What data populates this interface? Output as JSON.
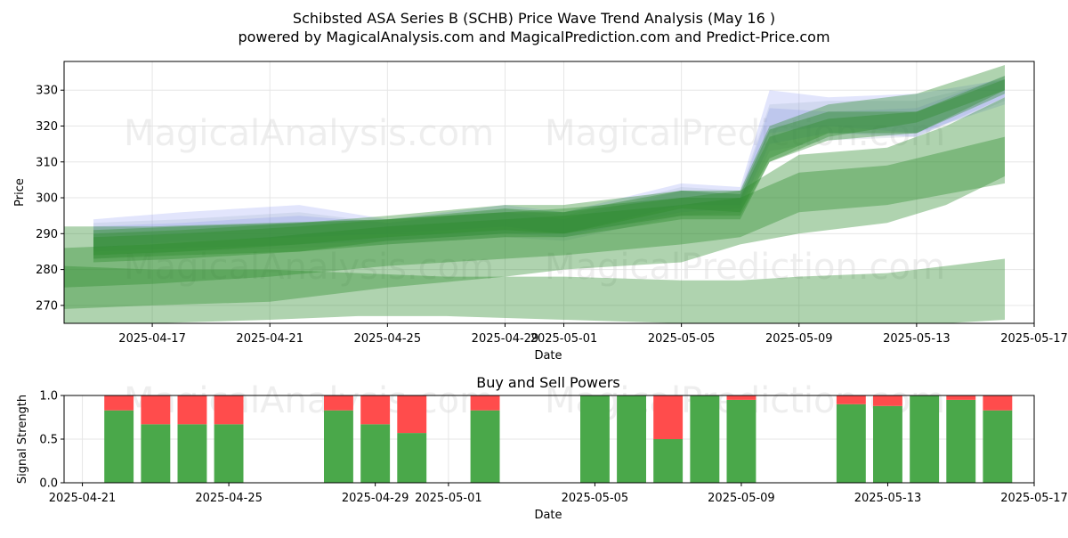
{
  "title": "Schibsted ASA Series B (SCHB) Price Wave Trend Analysis (May 16 )",
  "subtitle": "powered by MagicalAnalysis.com and MagicalPrediction.com and Predict-Price.com",
  "watermarks": [
    "MagicalAnalysis.com",
    "MagicalPrediction.com"
  ],
  "colors": {
    "green_band": "#2e8b2e",
    "blue_band": "#6f7ff0",
    "gray_band": "#8fa5bf",
    "buy": "#4aa84a",
    "sell": "#ff4c4c",
    "grid": "#e6e6e6"
  },
  "chart_data": [
    {
      "type": "area",
      "title": "",
      "xlabel": "Date",
      "ylabel": "Price",
      "x_range": [
        "2025-04-14",
        "2025-05-17"
      ],
      "ylim": [
        265,
        338
      ],
      "yticks": [
        270,
        280,
        290,
        300,
        310,
        320,
        330
      ],
      "xticks": [
        "2025-04-17",
        "2025-04-21",
        "2025-04-25",
        "2025-04-29",
        "2025-05-01",
        "2025-05-05",
        "2025-05-09",
        "2025-05-13",
        "2025-05-17"
      ],
      "grid": true,
      "series": [
        {
          "color": "blue",
          "x": [
            "2025-04-15",
            "2025-04-18",
            "2025-04-22",
            "2025-04-25",
            "2025-04-29",
            "2025-05-01",
            "2025-05-05",
            "2025-05-07",
            "2025-05-08",
            "2025-05-10",
            "2025-05-13",
            "2025-05-16"
          ],
          "upper": [
            294,
            296,
            298,
            294,
            298,
            296,
            304,
            303,
            330,
            328,
            329,
            333
          ],
          "lower": [
            286,
            288,
            289,
            290,
            292,
            290,
            298,
            298,
            318,
            320,
            318,
            326
          ]
        },
        {
          "color": "blue",
          "x": [
            "2025-04-15",
            "2025-04-18",
            "2025-04-22",
            "2025-04-25",
            "2025-04-29",
            "2025-05-01",
            "2025-05-05",
            "2025-05-07",
            "2025-05-08",
            "2025-05-10",
            "2025-05-13",
            "2025-05-16"
          ],
          "upper": [
            292,
            293,
            295,
            293,
            296,
            294,
            302,
            301,
            325,
            324,
            325,
            334
          ],
          "lower": [
            285,
            286,
            287,
            288,
            290,
            289,
            296,
            297,
            315,
            318,
            317,
            328
          ]
        },
        {
          "color": "gray",
          "x": [
            "2025-04-15",
            "2025-04-18",
            "2025-04-22",
            "2025-04-25",
            "2025-04-29",
            "2025-05-01",
            "2025-05-05",
            "2025-05-07",
            "2025-05-08",
            "2025-05-10",
            "2025-05-13",
            "2025-05-16"
          ],
          "upper": [
            293,
            294,
            296,
            293,
            297,
            295,
            303,
            302,
            326,
            327,
            327,
            333
          ],
          "lower": [
            283,
            285,
            286,
            287,
            289,
            288,
            295,
            296,
            313,
            316,
            317,
            327
          ]
        },
        {
          "color": "green",
          "x": [
            "2025-04-15",
            "2025-04-18",
            "2025-04-22",
            "2025-04-25",
            "2025-04-29",
            "2025-05-01",
            "2025-05-05",
            "2025-05-07",
            "2025-05-08",
            "2025-05-10",
            "2025-05-13",
            "2025-05-16"
          ],
          "upper": [
            291,
            292,
            293,
            294,
            297,
            296,
            302,
            301,
            319,
            324,
            324,
            334
          ],
          "lower": [
            284,
            285,
            287,
            289,
            291,
            290,
            297,
            296,
            311,
            318,
            318,
            329
          ]
        },
        {
          "color": "green",
          "x": [
            "2025-04-15",
            "2025-04-18",
            "2025-04-22",
            "2025-04-25",
            "2025-04-29",
            "2025-05-01",
            "2025-05-05",
            "2025-05-07",
            "2025-05-08",
            "2025-05-10",
            "2025-05-13",
            "2025-05-16"
          ],
          "upper": [
            289,
            290,
            292,
            294,
            296,
            296,
            300,
            300,
            317,
            322,
            324,
            333
          ],
          "lower": [
            283,
            284,
            285,
            288,
            290,
            290,
            295,
            295,
            310,
            316,
            318,
            330
          ]
        },
        {
          "color": "green",
          "x": [
            "2025-04-15",
            "2025-04-18",
            "2025-04-22",
            "2025-04-25",
            "2025-04-29",
            "2025-05-01",
            "2025-05-05",
            "2025-05-07",
            "2025-05-08",
            "2025-05-10",
            "2025-05-13",
            "2025-05-16"
          ],
          "upper": [
            290,
            291,
            293,
            295,
            298,
            298,
            302,
            302,
            320,
            326,
            329,
            337
          ],
          "lower": [
            282,
            283,
            285,
            287,
            289,
            289,
            294,
            294,
            310,
            317,
            321,
            330
          ]
        },
        {
          "color": "green",
          "x": [
            "2025-04-14",
            "2025-04-17",
            "2025-04-21",
            "2025-04-25",
            "2025-04-29",
            "2025-05-01",
            "2025-05-05",
            "2025-05-07",
            "2025-05-09",
            "2025-05-12",
            "2025-05-14",
            "2025-05-16"
          ],
          "upper": [
            286,
            287,
            289,
            292,
            294,
            295,
            298,
            300,
            307,
            309,
            313,
            317
          ],
          "lower": [
            275,
            276,
            278,
            281,
            283,
            284,
            287,
            289,
            296,
            298,
            301,
            304
          ]
        },
        {
          "color": "green",
          "x": [
            "2025-04-14",
            "2025-04-17",
            "2025-04-21",
            "2025-04-25",
            "2025-04-29",
            "2025-05-01",
            "2025-05-05",
            "2025-05-07",
            "2025-05-09",
            "2025-05-12",
            "2025-05-14",
            "2025-05-16"
          ],
          "upper": [
            292,
            292,
            293,
            294,
            296,
            297,
            300,
            302,
            312,
            314,
            320,
            328
          ],
          "lower": [
            269,
            270,
            271,
            275,
            278,
            280,
            282,
            287,
            290,
            293,
            298,
            306
          ]
        },
        {
          "color": "green",
          "x": [
            "2025-04-14",
            "2025-04-17",
            "2025-04-21",
            "2025-04-24",
            "2025-04-27",
            "2025-05-01",
            "2025-05-05",
            "2025-05-07",
            "2025-05-09",
            "2025-05-12",
            "2025-05-14",
            "2025-05-16"
          ],
          "upper": [
            281,
            280,
            280,
            279,
            278,
            278,
            277,
            277,
            278,
            279,
            281,
            283
          ],
          "lower": [
            265,
            265,
            266,
            267,
            267,
            266,
            265,
            265,
            265,
            265,
            265,
            266
          ]
        }
      ]
    },
    {
      "type": "bar",
      "title": "Buy and Sell Powers",
      "xlabel": "Date",
      "ylabel": "Signal Strength",
      "x_range": [
        "2025-04-21",
        "2025-05-17"
      ],
      "ylim": [
        0,
        1
      ],
      "yticks": [
        0.0,
        0.5,
        1.0
      ],
      "xticks": [
        "2025-04-21",
        "2025-04-25",
        "2025-04-29",
        "2025-05-01",
        "2025-05-05",
        "2025-05-09",
        "2025-05-13",
        "2025-05-17"
      ],
      "grid": true,
      "dates": [
        "2025-04-22",
        "2025-04-23",
        "2025-04-24",
        "2025-04-25",
        "2025-04-28",
        "2025-04-29",
        "2025-04-30",
        "2025-05-02",
        "2025-05-05",
        "2025-05-06",
        "2025-05-07",
        "2025-05-08",
        "2025-05-09",
        "2025-05-12",
        "2025-05-13",
        "2025-05-14",
        "2025-05-15",
        "2025-05-16"
      ],
      "buy": [
        0.83,
        0.67,
        0.67,
        0.67,
        0.83,
        0.67,
        0.57,
        0.83,
        1.0,
        1.0,
        0.5,
        1.0,
        0.95,
        0.9,
        0.88,
        1.0,
        0.95,
        0.83
      ],
      "sell": [
        0.17,
        0.33,
        0.33,
        0.33,
        0.17,
        0.33,
        0.43,
        0.17,
        0.0,
        0.0,
        0.5,
        0.0,
        0.05,
        0.1,
        0.12,
        0.0,
        0.05,
        0.17
      ]
    }
  ]
}
